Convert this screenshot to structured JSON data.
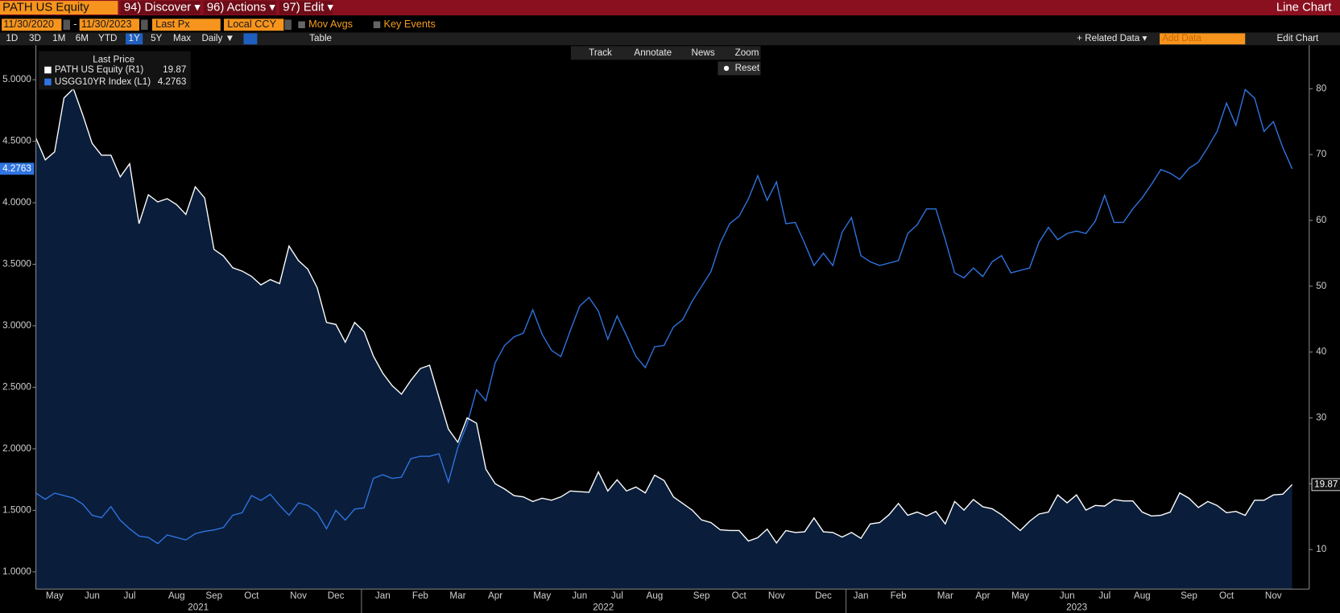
{
  "toolbar": {
    "security": "PATH US Equity",
    "menus": [
      "94) Discover ▾",
      "96) Actions ▾",
      "97) Edit ▾"
    ],
    "view": "Line Chart"
  },
  "settings": {
    "start_date": "11/30/2020",
    "separator": "-",
    "end_date": "11/30/2023",
    "field": "Last Px",
    "currency": "Local CCY",
    "options": [
      "Mov Avgs",
      "Key Events"
    ]
  },
  "ranges": [
    "1D",
    "3D",
    "1M",
    "6M",
    "YTD",
    "1Y",
    "5Y",
    "Max"
  ],
  "active_range": "1Y",
  "period": "Daily ▼",
  "table": "Table",
  "related": "+ Related Data ▾",
  "add_data": "Add Data",
  "edit_chart": "Edit Chart",
  "chart_tools": [
    "Track",
    "Annotate",
    "News",
    "Zoom"
  ],
  "reset": "Reset",
  "chart_data": {
    "type": "line",
    "legend_title": "Last Price",
    "categories": [
      null,
      null,
      "May",
      null,
      null,
      null,
      "Jun",
      null,
      null,
      null,
      "Jul",
      null,
      null,
      null,
      null,
      "Aug",
      null,
      null,
      null,
      "Sep",
      null,
      null,
      null,
      "Oct",
      null,
      null,
      null,
      null,
      "Nov",
      null,
      null,
      null,
      "Dec",
      null,
      null,
      null,
      null,
      "Jan",
      null,
      null,
      null,
      "Feb",
      null,
      null,
      null,
      "Mar",
      null,
      null,
      null,
      "Apr",
      null,
      null,
      null,
      null,
      "May",
      null,
      null,
      null,
      "Jun",
      null,
      null,
      null,
      "Jul",
      null,
      null,
      null,
      "Aug",
      null,
      null,
      null,
      null,
      "Sep",
      null,
      null,
      null,
      "Oct",
      null,
      null,
      null,
      "Nov",
      null,
      null,
      null,
      null,
      "Dec",
      null,
      null,
      null,
      "Jan",
      null,
      null,
      null,
      "Feb",
      null,
      null,
      null,
      null,
      "Mar",
      null,
      null,
      null,
      "Apr",
      null,
      null,
      null,
      "May",
      null,
      null,
      null,
      null,
      "Jun",
      null,
      null,
      null,
      "Jul",
      null,
      null,
      null,
      "Aug",
      null,
      null,
      null,
      null,
      "Sep",
      null,
      null,
      null,
      "Oct",
      null,
      null,
      null,
      null,
      "Nov",
      null,
      null
    ],
    "years": [
      "2021",
      "2022",
      "2023"
    ],
    "series": [
      {
        "name": "PATH US Equity  (R1)",
        "color": "#ffffff",
        "axis": "y2",
        "fill": "#0a1d3a",
        "values": [
          72.5,
          69.2,
          70.4,
          78.6,
          80.0,
          76.0,
          71.7,
          69.9,
          69.9,
          66.6,
          68.6,
          59.5,
          63.9,
          62.8,
          63.3,
          62.4,
          60.9,
          65.1,
          63.4,
          55.6,
          54.6,
          52.8,
          52.3,
          51.5,
          50.2,
          51.0,
          50.4,
          56.1,
          53.9,
          52.6,
          49.8,
          44.5,
          44.2,
          41.5,
          44.5,
          43.1,
          39.4,
          36.8,
          34.9,
          33.6,
          35.7,
          37.5,
          38.0,
          33.1,
          28.3,
          26.3,
          30.0,
          29.2,
          22.2,
          20.0,
          19.2,
          18.2,
          18.0,
          17.3,
          17.8,
          17.5,
          18.0,
          18.9,
          18.8,
          18.7,
          21.8,
          18.9,
          20.6,
          18.9,
          19.5,
          18.6,
          21.3,
          20.5,
          18.0,
          17.0,
          16.0,
          14.5,
          14.1,
          13.0,
          12.9,
          12.9,
          11.3,
          11.8,
          13.1,
          11.0,
          12.9,
          12.6,
          12.7,
          14.8,
          12.7,
          12.6,
          11.9,
          12.6,
          11.7,
          13.9,
          14.1,
          15.3,
          17.0,
          15.2,
          15.7,
          15.1,
          15.8,
          13.9,
          17.3,
          16.0,
          17.6,
          16.5,
          16.2,
          15.3,
          14.1,
          12.9,
          14.3,
          15.4,
          15.7,
          18.3,
          17.1,
          18.3,
          16.0,
          16.7,
          16.6,
          17.6,
          17.4,
          17.4,
          15.7,
          15.1,
          15.2,
          15.7,
          18.6,
          17.8,
          16.4,
          17.3,
          16.7,
          15.6,
          15.8,
          15.2,
          17.5,
          17.5,
          18.3,
          18.4,
          19.87
        ]
      },
      {
        "name": "USGG10YR Index  (L1)",
        "color": "#2f74e0",
        "axis": "y",
        "values": [
          1.64,
          1.59,
          1.64,
          1.62,
          1.6,
          1.55,
          1.46,
          1.44,
          1.53,
          1.42,
          1.35,
          1.29,
          1.28,
          1.23,
          1.3,
          1.28,
          1.26,
          1.31,
          1.33,
          1.34,
          1.36,
          1.46,
          1.48,
          1.62,
          1.58,
          1.63,
          1.54,
          1.46,
          1.56,
          1.54,
          1.48,
          1.35,
          1.5,
          1.42,
          1.51,
          1.52,
          1.76,
          1.79,
          1.76,
          1.77,
          1.92,
          1.94,
          1.94,
          1.96,
          1.73,
          2.01,
          2.2,
          2.48,
          2.39,
          2.7,
          2.84,
          2.91,
          2.94,
          3.13,
          2.93,
          2.8,
          2.75,
          2.96,
          3.16,
          3.23,
          3.12,
          2.89,
          3.08,
          2.92,
          2.75,
          2.66,
          2.83,
          2.84,
          2.99,
          3.05,
          3.2,
          3.32,
          3.44,
          3.67,
          3.83,
          3.89,
          4.03,
          4.22,
          4.02,
          4.17,
          3.83,
          3.84,
          3.67,
          3.49,
          3.59,
          3.49,
          3.76,
          3.88,
          3.57,
          3.52,
          3.49,
          3.51,
          3.53,
          3.75,
          3.82,
          3.95,
          3.95,
          3.7,
          3.43,
          3.39,
          3.47,
          3.4,
          3.52,
          3.57,
          3.43,
          3.45,
          3.47,
          3.68,
          3.8,
          3.7,
          3.75,
          3.77,
          3.75,
          3.85,
          4.06,
          3.84,
          3.84,
          3.95,
          4.04,
          4.15,
          4.27,
          4.24,
          4.19,
          4.28,
          4.33,
          4.45,
          4.58,
          4.81,
          4.63,
          4.92,
          4.85,
          4.58,
          4.66,
          4.45,
          4.2763
        ]
      }
    ],
    "ylim": [
      0.86,
      5.28
    ],
    "yticks": [
      {
        "value": 1,
        "label": "1.0000"
      },
      {
        "value": 1.5,
        "label": "1.5000"
      },
      {
        "value": 2,
        "label": "2.0000"
      },
      {
        "value": 2.5,
        "label": "2.5000"
      },
      {
        "value": 3,
        "label": "3.0000"
      },
      {
        "value": 3.5,
        "label": "3.5000"
      },
      {
        "value": 4,
        "label": "4.0000"
      },
      {
        "value": 4.5,
        "label": "4.5000"
      },
      {
        "value": 5,
        "label": "5.0000"
      }
    ],
    "y2lim": [
      4.0,
      86.6
    ],
    "y2ticks": [
      10,
      20,
      30,
      40,
      50,
      60,
      70,
      80
    ]
  }
}
